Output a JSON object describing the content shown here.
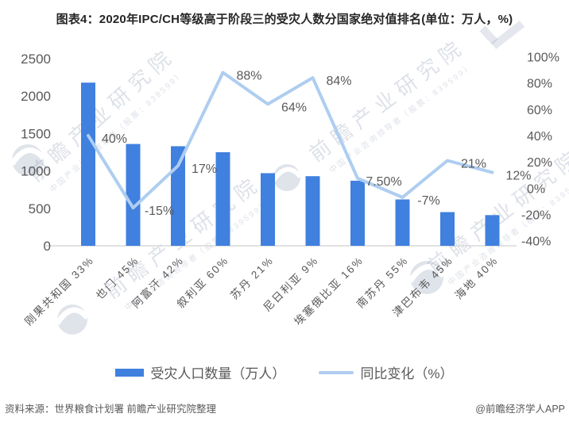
{
  "title": "图表4：2020年IPC/CH等级高于阶段三的受灾人数分国家绝对值排名(单位：万人，%)",
  "chart_data": {
    "type": "bar",
    "subtype": "bar-line-combo",
    "categories": [
      "刚果共和国 33%",
      "也门 45%",
      "阿富汗 42%",
      "叙利亚 60%",
      "苏丹 21%",
      "尼日利亚 9%",
      "埃塞俄比亚 16%",
      "南苏丹 55%",
      "津巴布韦 45%",
      "海地 40%"
    ],
    "series": [
      {
        "name": "受灾人口数量（万人）",
        "type": "bar",
        "y_axis": "left",
        "color": "#4080df",
        "values": [
          2180,
          1360,
          1330,
          1250,
          970,
          930,
          870,
          620,
          450,
          410
        ]
      },
      {
        "name": "同比变化（%）",
        "type": "line",
        "y_axis": "right",
        "color": "#aecdf0",
        "values": [
          40,
          -15,
          17,
          88,
          64,
          84,
          7.5,
          -7,
          21,
          12
        ],
        "point_labels": [
          "40%",
          "-15%",
          "17%",
          "88%",
          "64%",
          "84%",
          "7.50%",
          "-7%",
          "21%",
          "12%"
        ]
      }
    ],
    "left_axis": {
      "min": 0,
      "max": 2500,
      "step": 500,
      "tick_labels": [
        "0",
        "500",
        "1000",
        "1500",
        "2000",
        "2500"
      ]
    },
    "right_axis": {
      "min": -40,
      "max": 100,
      "step": 20,
      "tick_labels": [
        "-40%",
        "-20%",
        "0%",
        "20%",
        "40%",
        "60%",
        "80%",
        "100%"
      ]
    },
    "grid": false,
    "legend_position": "bottom",
    "text_color": "#595959",
    "axis_line_color": "#d9d9d9"
  },
  "footer": {
    "source": "资料来源：世界粮食计划署 前瞻产业研究院整理",
    "credit": "@前瞻经济学人APP"
  },
  "watermark": {
    "main": "前瞻产业研究院",
    "sub": "中国产业咨询领导者（股票：839599）"
  }
}
